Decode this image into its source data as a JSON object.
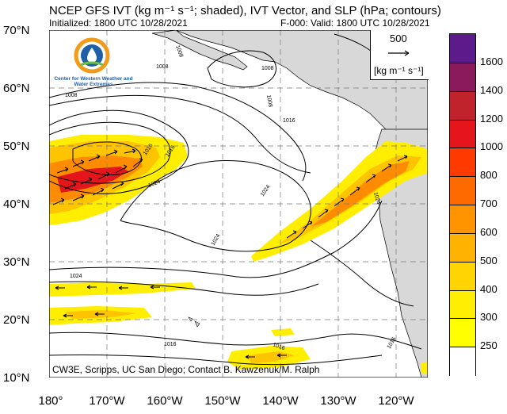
{
  "header": {
    "title": "NCEP GFS IVT (kg m⁻¹ s⁻¹; shaded), IVT Vector, and SLP (hPa; contours)",
    "initialized": "Initialized: 1800 UTC 10/28/2021",
    "forecast": "F-000: Valid: 1800 UTC 10/28/2021"
  },
  "logo": {
    "org_name": "Center for Western Weather and Water Extremes"
  },
  "vector_legend": {
    "reference_value": "500",
    "units": "[kg m⁻¹ s⁻¹]"
  },
  "credit": "CW3E, Scripps, UC San Diego; Contact B. Kawzenuk/M. Ralph",
  "axes": {
    "latitudes": [
      "70°N",
      "60°N",
      "50°N",
      "40°N",
      "30°N",
      "20°N",
      "10°N"
    ],
    "longitudes": [
      "180°",
      "170°W",
      "160°W",
      "150°W",
      "140°W",
      "130°W",
      "120°W"
    ]
  },
  "colorbar": {
    "levels": [
      "1600",
      "1400",
      "1200",
      "1000",
      "800",
      "700",
      "600",
      "500",
      "400",
      "300",
      "250"
    ],
    "colors": [
      "#5c1a8a",
      "#8b1a5c",
      "#c0232b",
      "#e4161c",
      "#ff3a00",
      "#ff6a00",
      "#ff9400",
      "#ffb300",
      "#ffd400",
      "#ffee00",
      "#ffff00",
      "#ffffff"
    ]
  },
  "slp_contour_labels": [
    "1008",
    "1008",
    "1008",
    "1008",
    "1008",
    "1016",
    "1016",
    "1016",
    "1024",
    "1024",
    "1024",
    "1024",
    "1024",
    "1016",
    "1016",
    "1016"
  ],
  "land_color": "#d8d8d8"
}
